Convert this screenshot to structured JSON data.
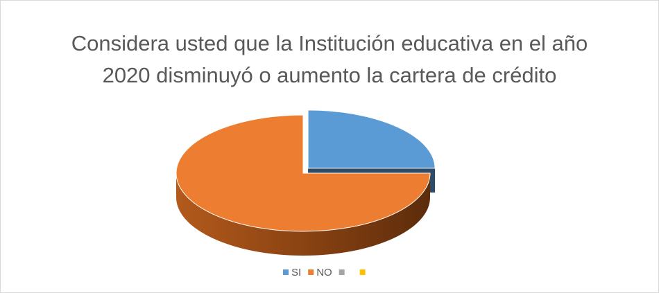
{
  "chart_data": {
    "type": "pie3d",
    "title": "Considera usted que la Institución educativa en el año 2020 disminuyó o aumento la cartera de crédito",
    "categories": [
      "SI",
      "NO",
      null,
      null
    ],
    "values": [
      25,
      75,
      0,
      0
    ],
    "colors": [
      "#5b9bd5",
      "#ed7d31",
      "#a5a5a5",
      "#ffc000"
    ],
    "legend": "bottom"
  }
}
